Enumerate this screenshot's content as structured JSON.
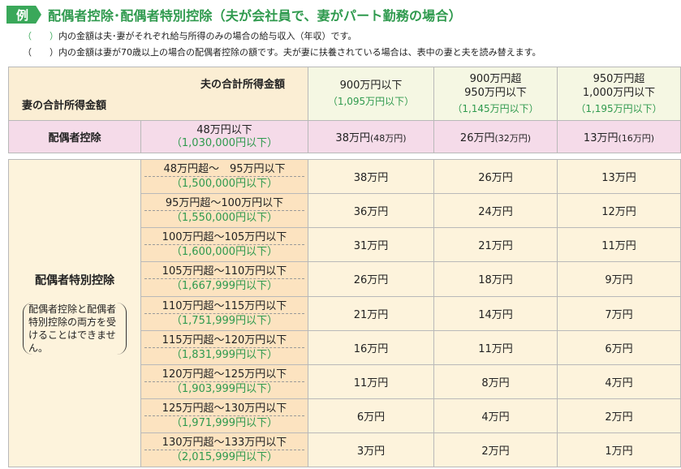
{
  "header": {
    "badge": "例",
    "title": "配偶者控除･配偶者特別控除（夫が会社員で、妻がパート勤務の場合）"
  },
  "notes": [
    {
      "paren": "（　　）",
      "text": "内の金額は夫･妻がそれぞれ給与所得のみの場合の給与収入（年収）です。"
    },
    {
      "paren": "（　　）",
      "text": "内の金額は妻が70歳以上の場合の配偶者控除の額です。夫が妻に扶養されている場合は、表中の妻と夫を読み替えます。"
    }
  ],
  "table": {
    "corner_husband": "夫の合計所得金額",
    "corner_wife": "妻の合計所得金額",
    "columns": [
      {
        "line1": "900万円以下",
        "line2": "",
        "sub": "（1,095万円以下）"
      },
      {
        "line1": "900万円超",
        "line2": "950万円以下",
        "sub": "（1,145万円以下）"
      },
      {
        "line1": "950万円超",
        "line2": "1,000万円以下",
        "sub": "（1,195万円以下）"
      }
    ],
    "spousal": {
      "label": "配偶者控除",
      "income": "48万円以下",
      "income_sub": "（1,030,000円以下）",
      "values": [
        {
          "main": "38万円",
          "elder": "(48万円)"
        },
        {
          "main": "26万円",
          "elder": "(32万円)"
        },
        {
          "main": "13万円",
          "elder": "(16万円)"
        }
      ]
    },
    "special": {
      "label": "配偶者特別控除",
      "note": "配偶者控除と配偶者特別控除の両方を受けることはできません。",
      "rows": [
        {
          "income": "48万円超～　95万円以下",
          "income_sub": "（1,500,000円以下）",
          "values": [
            "38万円",
            "26万円",
            "13万円"
          ]
        },
        {
          "income": "95万円超～100万円以下",
          "income_sub": "（1,550,000円以下）",
          "values": [
            "36万円",
            "24万円",
            "12万円"
          ]
        },
        {
          "income": "100万円超～105万円以下",
          "income_sub": "（1,600,000円以下）",
          "values": [
            "31万円",
            "21万円",
            "11万円"
          ]
        },
        {
          "income": "105万円超～110万円以下",
          "income_sub": "（1,667,999円以下）",
          "values": [
            "26万円",
            "18万円",
            "9万円"
          ]
        },
        {
          "income": "110万円超～115万円以下",
          "income_sub": "（1,751,999円以下）",
          "values": [
            "21万円",
            "14万円",
            "7万円"
          ]
        },
        {
          "income": "115万円超～120万円以下",
          "income_sub": "（1,831,999円以下）",
          "values": [
            "16万円",
            "11万円",
            "6万円"
          ]
        },
        {
          "income": "120万円超～125万円以下",
          "income_sub": "（1,903,999円以下）",
          "values": [
            "11万円",
            "8万円",
            "4万円"
          ]
        },
        {
          "income": "125万円超～130万円以下",
          "income_sub": "（1,971,999円以下）",
          "values": [
            "6万円",
            "4万円",
            "2万円"
          ]
        },
        {
          "income": "130万円超～133万円以下",
          "income_sub": "（2,015,999円以下）",
          "values": [
            "3万円",
            "2万円",
            "1万円"
          ]
        }
      ]
    }
  },
  "colors": {
    "accent_green": "#3aa85a",
    "pink": "#f5dbe9",
    "orange": "#fce3c0",
    "cream": "#fdf3dc"
  }
}
